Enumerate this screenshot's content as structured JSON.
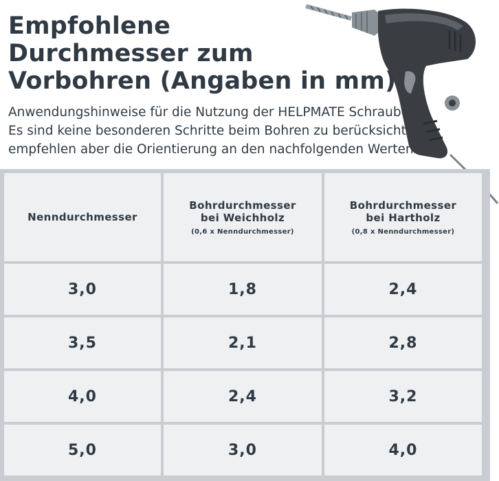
{
  "title_lines": [
    "Empfohlene",
    "Durchmesser zum",
    "Vorbohren (Angaben in mm)"
  ],
  "intro_lines": [
    "Anwendungshinweise für die Nutzung der HELPMATE Schrauben.",
    "Es sind keine besonderen Schritte beim Bohren zu berücksichtigen,",
    "empfehlen aber die Orientierung an den nachfolgenden Werten:"
  ],
  "illustration": {
    "icon": "power-drill-icon",
    "colors": {
      "body": "#3a3e43",
      "accent": "#8a9097",
      "bit": "#9aa1a8"
    }
  },
  "colors": {
    "text": "#2f3a44",
    "cell_bg": "#eef0f2",
    "grid_line": "#c9cdd1"
  },
  "table": {
    "headers": [
      {
        "line1": "Nenndurchmesser",
        "line2": "",
        "sub": ""
      },
      {
        "line1": "Bohrdurchmesser",
        "line2": "bei Weichholz",
        "sub": "(0,6 x Nenndurchmesser)"
      },
      {
        "line1": "Bohrdurchmesser",
        "line2": "bei Hartholz",
        "sub": "(0,8 x Nenndurchmesser)"
      }
    ],
    "rows": [
      [
        "3,0",
        "1,8",
        "2,4"
      ],
      [
        "3,5",
        "2,1",
        "2,8"
      ],
      [
        "4,0",
        "2,4",
        "3,2"
      ],
      [
        "5,0",
        "3,0",
        "4,0"
      ]
    ]
  }
}
